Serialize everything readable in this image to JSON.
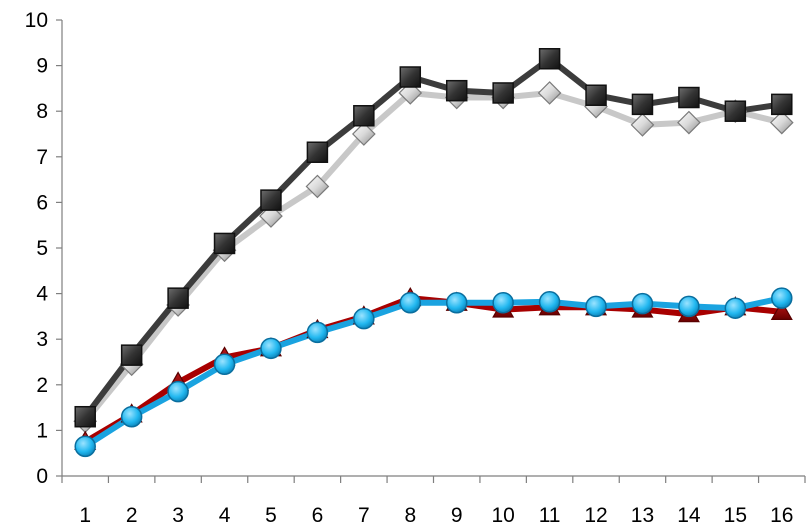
{
  "chart_data": {
    "type": "line",
    "title": "",
    "xlabel": "",
    "ylabel": "",
    "categories": [
      "1",
      "2",
      "3",
      "4",
      "5",
      "6",
      "7",
      "8",
      "9",
      "10",
      "11",
      "12",
      "13",
      "14",
      "15",
      "16"
    ],
    "ylim": [
      0,
      10
    ],
    "yticks": [
      "0",
      "1",
      "2",
      "3",
      "4",
      "5",
      "6",
      "7",
      "8",
      "9",
      "10"
    ],
    "grid": false,
    "legend": "none",
    "series": [
      {
        "marker": "diamond",
        "line_color": "#c8c8c8",
        "marker_color": "#e6e6e6",
        "values": [
          1.2,
          2.45,
          3.75,
          4.95,
          5.7,
          6.35,
          7.5,
          8.4,
          8.3,
          8.3,
          8.4,
          8.1,
          7.7,
          7.75,
          8.0,
          7.75
        ]
      },
      {
        "marker": "square",
        "line_color": "#3c3c3c",
        "marker_color": "#404040",
        "values": [
          1.3,
          2.65,
          3.9,
          5.1,
          6.05,
          7.1,
          7.9,
          8.75,
          8.45,
          8.4,
          9.15,
          8.35,
          8.15,
          8.3,
          8.0,
          8.15
        ]
      },
      {
        "marker": "triangle",
        "line_color": "#a80000",
        "marker_color": "#8b0000",
        "values": [
          0.75,
          1.35,
          2.05,
          2.6,
          2.8,
          3.2,
          3.5,
          3.9,
          3.8,
          3.65,
          3.7,
          3.7,
          3.65,
          3.55,
          3.7,
          3.6
        ]
      },
      {
        "marker": "circle",
        "line_color": "#1aa3e0",
        "marker_color": "#22b8f0",
        "values": [
          0.65,
          1.3,
          1.85,
          2.45,
          2.8,
          3.15,
          3.45,
          3.8,
          3.8,
          3.8,
          3.82,
          3.72,
          3.78,
          3.72,
          3.68,
          3.9
        ]
      }
    ]
  }
}
